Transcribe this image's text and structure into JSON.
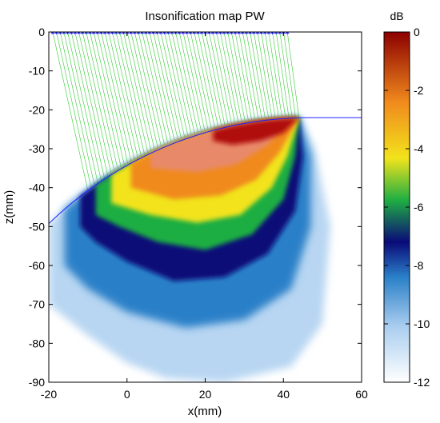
{
  "chart_data": {
    "type": "heatmap",
    "title": "Insonification map PW",
    "xlabel": "x(mm)",
    "ylabel": "z(mm)",
    "xlim": [
      -20,
      60
    ],
    "ylim": [
      -90,
      0
    ],
    "x_ticks": [
      "-20",
      "0",
      "20",
      "40",
      "60"
    ],
    "y_ticks": [
      "0",
      "-10",
      "-20",
      "-30",
      "-40",
      "-50",
      "-60",
      "-70",
      "-80",
      "-90"
    ],
    "colorbar": {
      "title": "dB",
      "range": [
        -12,
        0
      ],
      "ticks": [
        "0",
        "-2",
        "-4",
        "-6",
        "-8",
        "-10",
        "-12"
      ],
      "colormap": [
        "#ffffff",
        "#2a80c8",
        "#0a0a78",
        "#1fae43",
        "#f2e31c",
        "#f08a1d",
        "#8c0000"
      ]
    },
    "transducer": {
      "x_range": [
        -19,
        41
      ],
      "z": 0,
      "element_count": 64,
      "marker_color": "#1f1fff"
    },
    "ray_color": "#33cc33",
    "interface": {
      "shape": "arc",
      "center": [
        47,
        -118
      ],
      "radius": 96,
      "color": "#1f1fff"
    },
    "focus": {
      "x": 44,
      "z": -22
    }
  }
}
